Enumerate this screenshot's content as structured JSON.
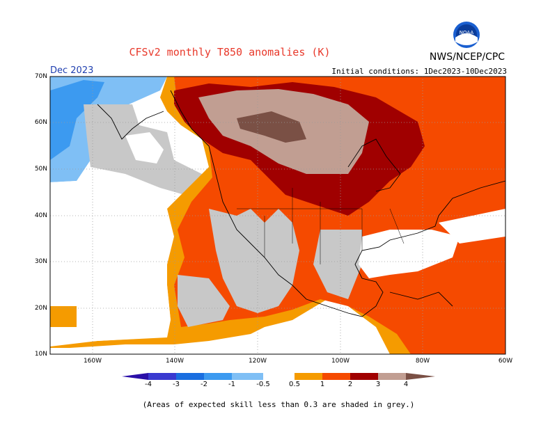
{
  "header": {
    "title": "CFSv2 monthly T850 anomalies (K)",
    "org": "NWS/NCEP/CPC",
    "month": "Dec 2023",
    "initial_conditions": "Initial conditions: 1Dec2023-10Dec2023",
    "logo": "noaa-logo"
  },
  "axes": {
    "lat_labels": [
      "70N",
      "60N",
      "50N",
      "40N",
      "30N",
      "20N",
      "10N"
    ],
    "lon_labels": [
      "160W",
      "140W",
      "120W",
      "100W",
      "80W",
      "60W"
    ]
  },
  "colorbar": {
    "labels": [
      "-4",
      "-3",
      "-2",
      "-1",
      "-0.5",
      "0.5",
      "1",
      "2",
      "3",
      "4"
    ],
    "colors": [
      "#2a0fa8",
      "#3a3ad0",
      "#1a6ee0",
      "#3c9af0",
      "#7fbff5",
      "#ffffff",
      "#f59b00",
      "#f54a00",
      "#e22b00",
      "#a00000",
      "#c19e92",
      "#7a5045"
    ]
  },
  "legend_colors": {
    "grey_low_skill": "#c8c8c8",
    "grid": "#9a9a9a"
  },
  "footnote": "(Areas of expected skill less than 0.3 are shaded in grey.)"
}
